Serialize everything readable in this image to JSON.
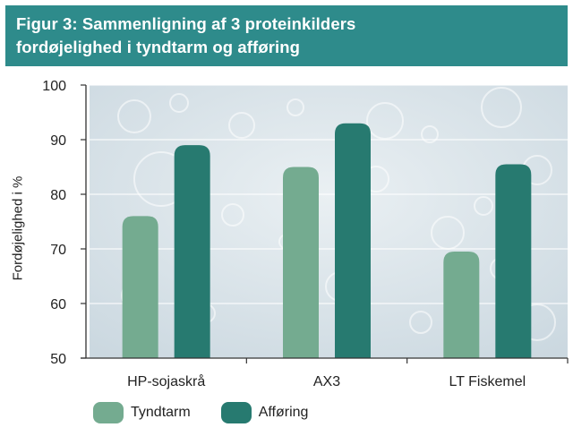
{
  "header": {
    "title_line1": "Figur 3: Sammenligning af 3 proteinkilders",
    "title_line2": "fordøjelighed i tyndtarm og afføring"
  },
  "chart_data": {
    "type": "bar",
    "title": "Figur 3: Sammenligning af 3 proteinkilders fordøjelighed i tyndtarm og afføring",
    "xlabel": "",
    "ylabel": "Fordøjelighed i %",
    "ylim": [
      50,
      100
    ],
    "yticks": [
      "100",
      "90",
      "80",
      "70",
      "60",
      "50"
    ],
    "categories": [
      "HP-sojaskrå",
      "AX3",
      "LT Fiskemel"
    ],
    "series": [
      {
        "name": "Tyndtarm",
        "color": "#74ab90",
        "values": [
          76,
          85,
          69.5
        ]
      },
      {
        "name": "Afføring",
        "color": "#277a70",
        "values": [
          89,
          93,
          85.5
        ]
      }
    ],
    "legend_position": "bottom-left",
    "grid": true
  }
}
